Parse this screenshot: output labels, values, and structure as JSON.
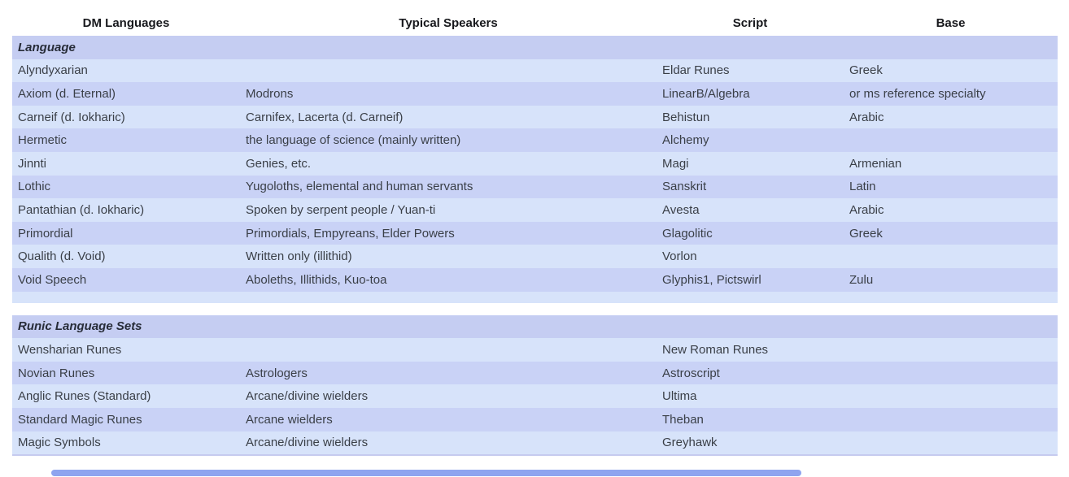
{
  "table": {
    "columns": [
      "DM Languages",
      "Typical Speakers",
      "Script",
      "Base"
    ],
    "sections": [
      {
        "title": "Language",
        "rows": [
          [
            "Alyndyxarian",
            "",
            "Eldar Runes",
            "Greek"
          ],
          [
            "Axiom (d. Eternal)",
            "Modrons",
            "LinearB/Algebra",
            "or ms reference specialty"
          ],
          [
            "Carneif (d. Iokharic)",
            "Carnifex, Lacerta (d. Carneif)",
            "Behistun",
            "Arabic"
          ],
          [
            "Hermetic",
            "the language of science (mainly written)",
            "Alchemy",
            ""
          ],
          [
            "Jinnti",
            "Genies, etc.",
            "Magi",
            "Armenian"
          ],
          [
            "Lothic",
            "Yugoloths, elemental and human servants",
            "Sanskrit",
            "Latin"
          ],
          [
            "Pantathian (d. Iokharic)",
            "Spoken by serpent people / Yuan-ti",
            "Avesta",
            "Arabic"
          ],
          [
            "Primordial",
            "Primordials, Empyreans, Elder Powers",
            "Glagolitic",
            "Greek"
          ],
          [
            "Qualith (d. Void)",
            "Written only (illithid)",
            "Vorlon",
            ""
          ],
          [
            "Void Speech",
            "Aboleths, Illithids, Kuo-toa",
            "Glyphis1, Pictswirl",
            "Zulu"
          ]
        ]
      },
      {
        "title": "Runic Language Sets",
        "rows": [
          [
            "Wensharian Runes",
            "",
            "New Roman Runes",
            ""
          ],
          [
            "Novian Runes",
            "Astrologers",
            "Astroscript",
            ""
          ],
          [
            "Anglic Runes (Standard)",
            "Arcane/divine wielders",
            "Ultima",
            ""
          ],
          [
            "Standard Magic Runes",
            "Arcane wielders",
            "Theban",
            ""
          ],
          [
            "Magic Symbols",
            "Arcane/divine wielders",
            "Greyhawk",
            ""
          ]
        ]
      }
    ]
  },
  "colors": {
    "row_light": "#d7e3fa",
    "row_banded": "#c9d2f6",
    "row_section": "#c5cdf2",
    "header_text": "#17181c",
    "body_text": "#3a3f47",
    "scrollbar_thumb": "#8ea4ef"
  }
}
